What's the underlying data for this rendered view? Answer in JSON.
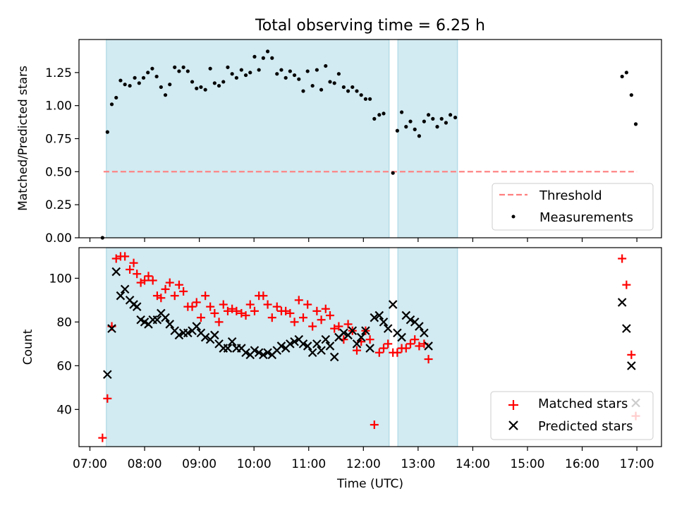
{
  "title": "Total observing time = 6.25 h",
  "xlabel": "Time (UTC)",
  "xticks": [
    "07:00",
    "08:00",
    "09:00",
    "10:00",
    "11:00",
    "12:00",
    "13:00",
    "14:00",
    "15:00",
    "16:00",
    "17:00"
  ],
  "colors": {
    "shade": "#add8e6",
    "threshold": "#ff7f7f",
    "matched": "#ff0000",
    "predicted": "#000000",
    "measurement": "#000000"
  },
  "chart_data": [
    {
      "type": "scatter",
      "ylabel": "Matched/Predicted stars",
      "xlim": [
        6.8,
        17.45
      ],
      "ylim": [
        0.0,
        1.5
      ],
      "yticks": [
        0.0,
        0.25,
        0.5,
        0.75,
        1.0,
        1.25
      ],
      "x_unit": "hours UTC",
      "shaded_intervals": [
        [
          7.3,
          12.47
        ],
        [
          12.63,
          13.72
        ]
      ],
      "threshold": {
        "name": "Threshold",
        "value": 0.5,
        "x_range": [
          7.25,
          17.0
        ],
        "style": "dashed"
      },
      "series": [
        {
          "name": "Measurements",
          "marker": "dot",
          "points": [
            [
              7.23,
              0.0
            ],
            [
              7.32,
              0.8
            ],
            [
              7.4,
              1.01
            ],
            [
              7.48,
              1.06
            ],
            [
              7.56,
              1.19
            ],
            [
              7.64,
              1.16
            ],
            [
              7.73,
              1.15
            ],
            [
              7.82,
              1.21
            ],
            [
              7.9,
              1.17
            ],
            [
              7.98,
              1.21
            ],
            [
              8.06,
              1.25
            ],
            [
              8.14,
              1.28
            ],
            [
              8.22,
              1.22
            ],
            [
              8.3,
              1.14
            ],
            [
              8.38,
              1.08
            ],
            [
              8.46,
              1.16
            ],
            [
              8.55,
              1.29
            ],
            [
              8.63,
              1.26
            ],
            [
              8.71,
              1.29
            ],
            [
              8.79,
              1.26
            ],
            [
              8.87,
              1.18
            ],
            [
              8.95,
              1.13
            ],
            [
              9.03,
              1.14
            ],
            [
              9.11,
              1.12
            ],
            [
              9.2,
              1.28
            ],
            [
              9.28,
              1.17
            ],
            [
              9.36,
              1.15
            ],
            [
              9.44,
              1.18
            ],
            [
              9.52,
              1.29
            ],
            [
              9.6,
              1.24
            ],
            [
              9.68,
              1.21
            ],
            [
              9.77,
              1.27
            ],
            [
              9.85,
              1.23
            ],
            [
              9.93,
              1.25
            ],
            [
              10.01,
              1.37
            ],
            [
              10.09,
              1.27
            ],
            [
              10.17,
              1.36
            ],
            [
              10.25,
              1.41
            ],
            [
              10.33,
              1.36
            ],
            [
              10.42,
              1.24
            ],
            [
              10.5,
              1.27
            ],
            [
              10.58,
              1.21
            ],
            [
              10.66,
              1.26
            ],
            [
              10.74,
              1.23
            ],
            [
              10.82,
              1.2
            ],
            [
              10.9,
              1.11
            ],
            [
              10.98,
              1.26
            ],
            [
              11.07,
              1.15
            ],
            [
              11.15,
              1.27
            ],
            [
              11.23,
              1.12
            ],
            [
              11.31,
              1.3
            ],
            [
              11.39,
              1.18
            ],
            [
              11.47,
              1.17
            ],
            [
              11.55,
              1.24
            ],
            [
              11.64,
              1.14
            ],
            [
              11.72,
              1.11
            ],
            [
              11.8,
              1.14
            ],
            [
              11.88,
              1.11
            ],
            [
              11.96,
              1.08
            ],
            [
              12.04,
              1.05
            ],
            [
              12.12,
              1.05
            ],
            [
              12.2,
              0.9
            ],
            [
              12.29,
              0.93
            ],
            [
              12.37,
              0.94
            ],
            [
              12.54,
              0.49
            ],
            [
              12.62,
              0.81
            ],
            [
              12.7,
              0.95
            ],
            [
              12.78,
              0.84
            ],
            [
              12.86,
              0.88
            ],
            [
              12.94,
              0.82
            ],
            [
              13.02,
              0.77
            ],
            [
              13.11,
              0.88
            ],
            [
              13.19,
              0.93
            ],
            [
              13.27,
              0.9
            ],
            [
              13.35,
              0.84
            ],
            [
              13.43,
              0.9
            ],
            [
              13.51,
              0.87
            ],
            [
              13.59,
              0.93
            ],
            [
              13.68,
              0.91
            ],
            [
              16.73,
              1.22
            ],
            [
              16.81,
              1.25
            ],
            [
              16.9,
              1.08
            ],
            [
              16.98,
              0.86
            ]
          ]
        }
      ],
      "legend": {
        "location": "bottom-right",
        "entries": [
          "Threshold",
          "Measurements"
        ]
      }
    },
    {
      "type": "scatter",
      "ylabel": "Count",
      "xlim": [
        6.8,
        17.45
      ],
      "ylim": [
        23,
        114
      ],
      "yticks": [
        40,
        60,
        80,
        100
      ],
      "x_unit": "hours UTC",
      "shaded_intervals": [
        [
          7.3,
          12.47
        ],
        [
          12.63,
          13.72
        ]
      ],
      "series": [
        {
          "name": "Matched stars",
          "marker": "plus",
          "points": [
            [
              7.23,
              27
            ],
            [
              7.32,
              45
            ],
            [
              7.4,
              78
            ],
            [
              7.48,
              109
            ],
            [
              7.56,
              110
            ],
            [
              7.64,
              110
            ],
            [
              7.73,
              104
            ],
            [
              7.8,
              107
            ],
            [
              7.86,
              102
            ],
            [
              7.93,
              98
            ],
            [
              8.0,
              99
            ],
            [
              8.07,
              101
            ],
            [
              8.15,
              99
            ],
            [
              8.23,
              92
            ],
            [
              8.3,
              91
            ],
            [
              8.38,
              95
            ],
            [
              8.46,
              98
            ],
            [
              8.55,
              92
            ],
            [
              8.63,
              97
            ],
            [
              8.71,
              94
            ],
            [
              8.79,
              87
            ],
            [
              8.87,
              87
            ],
            [
              8.95,
              89
            ],
            [
              9.03,
              82
            ],
            [
              9.11,
              92
            ],
            [
              9.2,
              87
            ],
            [
              9.28,
              84
            ],
            [
              9.36,
              80
            ],
            [
              9.44,
              88
            ],
            [
              9.52,
              85
            ],
            [
              9.6,
              86
            ],
            [
              9.68,
              85
            ],
            [
              9.77,
              84
            ],
            [
              9.85,
              83
            ],
            [
              9.93,
              88
            ],
            [
              10.01,
              85
            ],
            [
              10.09,
              92
            ],
            [
              10.17,
              92
            ],
            [
              10.25,
              88
            ],
            [
              10.33,
              82
            ],
            [
              10.42,
              87
            ],
            [
              10.5,
              85
            ],
            [
              10.58,
              85
            ],
            [
              10.66,
              84
            ],
            [
              10.74,
              80
            ],
            [
              10.82,
              90
            ],
            [
              10.9,
              82
            ],
            [
              10.98,
              88
            ],
            [
              11.07,
              78
            ],
            [
              11.15,
              85
            ],
            [
              11.23,
              81
            ],
            [
              11.31,
              86
            ],
            [
              11.39,
              83
            ],
            [
              11.47,
              77
            ],
            [
              11.55,
              78
            ],
            [
              11.64,
              72
            ],
            [
              11.72,
              79
            ],
            [
              11.8,
              76
            ],
            [
              11.88,
              67
            ],
            [
              11.96,
              71
            ],
            [
              12.04,
              76
            ],
            [
              12.12,
              72
            ],
            [
              12.2,
              33
            ],
            [
              12.29,
              66
            ],
            [
              12.37,
              68
            ],
            [
              12.45,
              70
            ],
            [
              12.54,
              66
            ],
            [
              12.62,
              66
            ],
            [
              12.7,
              68
            ],
            [
              12.78,
              68
            ],
            [
              12.86,
              70
            ],
            [
              12.94,
              72
            ],
            [
              13.02,
              69
            ],
            [
              13.11,
              70
            ],
            [
              13.19,
              63
            ],
            [
              16.73,
              109
            ],
            [
              16.81,
              97
            ],
            [
              16.9,
              65
            ],
            [
              16.98,
              37
            ]
          ]
        },
        {
          "name": "Predicted stars",
          "marker": "x",
          "points": [
            [
              7.32,
              56
            ],
            [
              7.4,
              77
            ],
            [
              7.48,
              103
            ],
            [
              7.56,
              92
            ],
            [
              7.64,
              95
            ],
            [
              7.73,
              90
            ],
            [
              7.8,
              88
            ],
            [
              7.86,
              87
            ],
            [
              7.93,
              81
            ],
            [
              8.0,
              80
            ],
            [
              8.07,
              79
            ],
            [
              8.15,
              81
            ],
            [
              8.23,
              81
            ],
            [
              8.3,
              84
            ],
            [
              8.38,
              82
            ],
            [
              8.46,
              79
            ],
            [
              8.55,
              76
            ],
            [
              8.63,
              74
            ],
            [
              8.71,
              75
            ],
            [
              8.79,
              75
            ],
            [
              8.87,
              76
            ],
            [
              8.95,
              78
            ],
            [
              9.03,
              75
            ],
            [
              9.11,
              73
            ],
            [
              9.2,
              72
            ],
            [
              9.28,
              74
            ],
            [
              9.36,
              70
            ],
            [
              9.44,
              68
            ],
            [
              9.52,
              68
            ],
            [
              9.6,
              71
            ],
            [
              9.68,
              68
            ],
            [
              9.77,
              68
            ],
            [
              9.85,
              66
            ],
            [
              9.93,
              65
            ],
            [
              10.01,
              67
            ],
            [
              10.09,
              66
            ],
            [
              10.17,
              65
            ],
            [
              10.25,
              66
            ],
            [
              10.33,
              65
            ],
            [
              10.42,
              67
            ],
            [
              10.5,
              69
            ],
            [
              10.58,
              68
            ],
            [
              10.66,
              70
            ],
            [
              10.74,
              71
            ],
            [
              10.82,
              72
            ],
            [
              10.9,
              70
            ],
            [
              10.98,
              69
            ],
            [
              11.07,
              66
            ],
            [
              11.15,
              70
            ],
            [
              11.23,
              67
            ],
            [
              11.31,
              72
            ],
            [
              11.39,
              69
            ],
            [
              11.47,
              64
            ],
            [
              11.55,
              73
            ],
            [
              11.64,
              75
            ],
            [
              11.72,
              74
            ],
            [
              11.8,
              76
            ],
            [
              11.88,
              70
            ],
            [
              11.96,
              73
            ],
            [
              12.04,
              76
            ],
            [
              12.12,
              68
            ],
            [
              12.2,
              82
            ],
            [
              12.29,
              83
            ],
            [
              12.37,
              80
            ],
            [
              12.45,
              77
            ],
            [
              12.54,
              88
            ],
            [
              12.62,
              75
            ],
            [
              12.7,
              73
            ],
            [
              12.78,
              83
            ],
            [
              12.86,
              81
            ],
            [
              12.94,
              80
            ],
            [
              13.02,
              78
            ],
            [
              13.11,
              75
            ],
            [
              13.19,
              69
            ],
            [
              16.73,
              89
            ],
            [
              16.81,
              77
            ],
            [
              16.9,
              60
            ],
            [
              16.98,
              43
            ]
          ]
        }
      ],
      "legend": {
        "location": "bottom-right",
        "entries": [
          "Matched stars",
          "Predicted stars"
        ]
      }
    }
  ]
}
